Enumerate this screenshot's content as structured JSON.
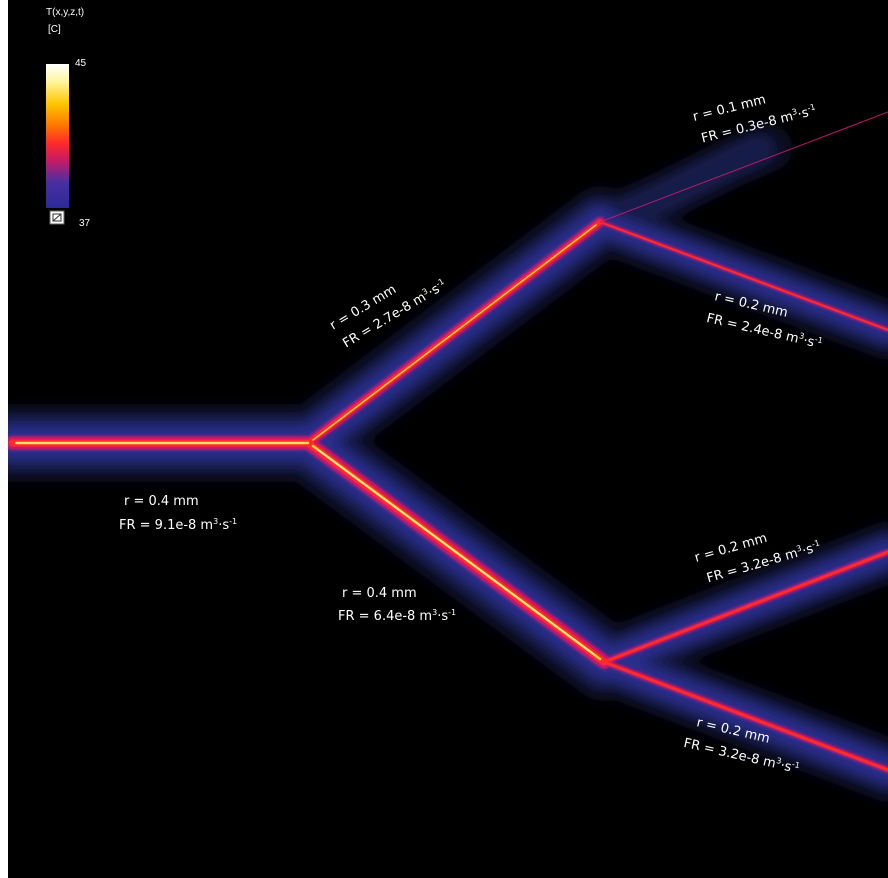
{
  "legend": {
    "title_line1": "T(x,y,z,t)",
    "title_line2": "[C]",
    "max_label": "45",
    "min_label": "37",
    "icon": "colormap-range-icon",
    "colors": [
      "#ffffff",
      "#fff6a0",
      "#ffc400",
      "#ff7a00",
      "#ff2a2a",
      "#c01a6a",
      "#4a2fa0",
      "#2a2a9a"
    ]
  },
  "vessels": [
    {
      "id": "trunk",
      "r": "r = 0.4 mm",
      "fr_prefix": "FR = 9.1e-8 m",
      "fr_exp1": "3",
      "fr_mid": "·s",
      "fr_exp2": "-1"
    },
    {
      "id": "upper",
      "r": "r = 0.3 mm",
      "fr_prefix": "FR = 2.7e-8 m",
      "fr_exp1": "3",
      "fr_mid": "·s",
      "fr_exp2": "-1"
    },
    {
      "id": "lower",
      "r": "r = 0.4 mm",
      "fr_prefix": "FR = 6.4e-8 m",
      "fr_exp1": "3",
      "fr_mid": "·s",
      "fr_exp2": "-1"
    },
    {
      "id": "upper-top",
      "r": "r = 0.1 mm",
      "fr_prefix": "FR = 0.3e-8 m",
      "fr_exp1": "3",
      "fr_mid": "·s",
      "fr_exp2": "-1"
    },
    {
      "id": "upper-bottom",
      "r": "r = 0.2 mm",
      "fr_prefix": "FR = 2.4e-8 m",
      "fr_exp1": "3",
      "fr_mid": "·s",
      "fr_exp2": "-1"
    },
    {
      "id": "lower-top",
      "r": "r = 0.2 mm",
      "fr_prefix": "FR = 3.2e-8 m",
      "fr_exp1": "3",
      "fr_mid": "·s",
      "fr_exp2": "-1"
    },
    {
      "id": "lower-bottom",
      "r": "r = 0.2 mm",
      "fr_prefix": "FR = 3.2e-8 m",
      "fr_exp1": "3",
      "fr_mid": "·s",
      "fr_exp2": "-1"
    }
  ]
}
